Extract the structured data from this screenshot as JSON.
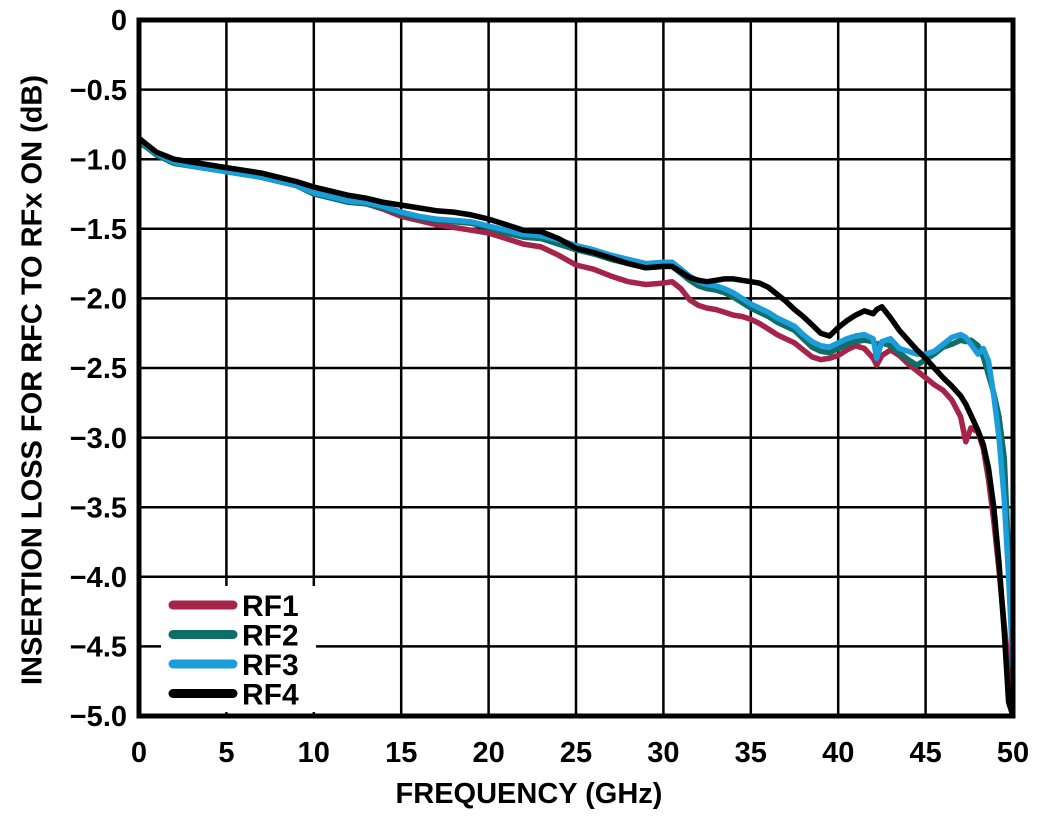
{
  "chart_data": {
    "type": "line",
    "title": "",
    "xlabel": "FREQUENCY (GHz)",
    "ylabel": "INSERTION LOSS FOR RFC TO RFx ON (dB)",
    "xlim": [
      0,
      50
    ],
    "ylim": [
      -5.0,
      0
    ],
    "grid": "on",
    "grid_spacing": {
      "x_ghz": 5,
      "y_db": 0.5
    },
    "legend_position": "lower-left",
    "x_ticks": [
      0,
      5,
      10,
      15,
      20,
      25,
      30,
      35,
      40,
      45,
      50
    ],
    "x_tick_labels": [
      "0",
      "5",
      "10",
      "15",
      "20",
      "25",
      "30",
      "35",
      "40",
      "45",
      "50"
    ],
    "y_ticks": [
      0,
      -0.5,
      -1.0,
      -1.5,
      -2.0,
      -2.5,
      -3.0,
      -3.5,
      -4.0,
      -4.5,
      -5.0
    ],
    "y_tick_labels": [
      "0",
      "−0.5",
      "−1.0",
      "−1.5",
      "−2.0",
      "−2.5",
      "−3.0",
      "−3.5",
      "−4.0",
      "−4.5",
      "−5.0"
    ],
    "x": [
      0,
      0.5,
      1,
      2,
      3,
      4,
      5,
      6,
      7,
      8,
      9,
      10,
      11,
      12,
      13,
      14,
      15,
      16,
      17,
      18,
      19,
      20,
      21,
      22,
      23,
      24,
      25,
      26,
      27,
      28,
      29,
      30,
      30.5,
      31,
      31.5,
      32,
      32.5,
      33,
      33.5,
      34,
      34.5,
      35,
      35.5,
      36,
      36.5,
      37,
      37.5,
      38,
      38.5,
      39,
      39.5,
      40,
      40.5,
      41,
      41.5,
      42,
      42.2,
      42.5,
      43,
      43.5,
      44,
      44.5,
      45,
      45.5,
      46,
      46.5,
      47,
      47.3,
      47.6,
      48,
      48.3,
      48.6,
      48.9,
      49.2,
      49.5,
      49.75,
      50
    ],
    "series": [
      {
        "name": "RF1",
        "color": "#A62349",
        "values": [
          -0.88,
          -0.92,
          -0.97,
          -1.02,
          -1.04,
          -1.06,
          -1.08,
          -1.1,
          -1.13,
          -1.16,
          -1.19,
          -1.23,
          -1.26,
          -1.3,
          -1.32,
          -1.36,
          -1.41,
          -1.44,
          -1.47,
          -1.49,
          -1.51,
          -1.53,
          -1.57,
          -1.61,
          -1.63,
          -1.69,
          -1.76,
          -1.79,
          -1.84,
          -1.88,
          -1.9,
          -1.89,
          -1.88,
          -1.93,
          -2.01,
          -2.05,
          -2.07,
          -2.08,
          -2.1,
          -2.12,
          -2.13,
          -2.15,
          -2.18,
          -2.22,
          -2.26,
          -2.29,
          -2.32,
          -2.37,
          -2.42,
          -2.44,
          -2.43,
          -2.41,
          -2.37,
          -2.34,
          -2.36,
          -2.43,
          -2.48,
          -2.41,
          -2.37,
          -2.41,
          -2.47,
          -2.52,
          -2.57,
          -2.62,
          -2.66,
          -2.73,
          -2.85,
          -3.03,
          -2.93,
          -2.96,
          -3.08,
          -3.3,
          -3.6,
          -3.95,
          -4.35,
          -4.65,
          -4.9
        ]
      },
      {
        "name": "RF2",
        "color": "#0F6F68",
        "values": [
          -0.87,
          -0.92,
          -0.97,
          -1.03,
          -1.05,
          -1.07,
          -1.09,
          -1.11,
          -1.13,
          -1.16,
          -1.19,
          -1.25,
          -1.28,
          -1.31,
          -1.32,
          -1.35,
          -1.39,
          -1.42,
          -1.44,
          -1.45,
          -1.46,
          -1.49,
          -1.53,
          -1.56,
          -1.57,
          -1.61,
          -1.65,
          -1.68,
          -1.72,
          -1.75,
          -1.78,
          -1.77,
          -1.77,
          -1.82,
          -1.87,
          -1.91,
          -1.93,
          -1.94,
          -1.96,
          -1.99,
          -2.03,
          -2.07,
          -2.1,
          -2.13,
          -2.17,
          -2.2,
          -2.23,
          -2.29,
          -2.35,
          -2.38,
          -2.39,
          -2.36,
          -2.33,
          -2.31,
          -2.3,
          -2.31,
          -2.33,
          -2.32,
          -2.34,
          -2.39,
          -2.44,
          -2.48,
          -2.44,
          -2.4,
          -2.35,
          -2.33,
          -2.3,
          -2.31,
          -2.3,
          -2.34,
          -2.42,
          -2.55,
          -2.68,
          -2.85,
          -3.15,
          -3.85,
          -4.6
        ]
      },
      {
        "name": "RF3",
        "color": "#1B9DDA",
        "values": [
          -0.86,
          -0.91,
          -0.96,
          -1.02,
          -1.05,
          -1.07,
          -1.09,
          -1.11,
          -1.13,
          -1.16,
          -1.19,
          -1.24,
          -1.27,
          -1.3,
          -1.31,
          -1.34,
          -1.38,
          -1.41,
          -1.43,
          -1.44,
          -1.45,
          -1.48,
          -1.51,
          -1.54,
          -1.55,
          -1.58,
          -1.62,
          -1.65,
          -1.69,
          -1.72,
          -1.75,
          -1.74,
          -1.74,
          -1.79,
          -1.84,
          -1.88,
          -1.9,
          -1.91,
          -1.93,
          -1.96,
          -2.0,
          -2.04,
          -2.07,
          -2.1,
          -2.14,
          -2.17,
          -2.2,
          -2.26,
          -2.31,
          -2.34,
          -2.35,
          -2.32,
          -2.29,
          -2.27,
          -2.26,
          -2.29,
          -2.43,
          -2.31,
          -2.29,
          -2.36,
          -2.38,
          -2.4,
          -2.4,
          -2.38,
          -2.33,
          -2.28,
          -2.26,
          -2.28,
          -2.33,
          -2.4,
          -2.36,
          -2.45,
          -2.7,
          -3.0,
          -3.45,
          -4.0,
          -4.65
        ]
      },
      {
        "name": "RF4",
        "color": "#000000",
        "values": [
          -0.85,
          -0.9,
          -0.95,
          -1.0,
          -1.02,
          -1.04,
          -1.06,
          -1.08,
          -1.1,
          -1.13,
          -1.16,
          -1.2,
          -1.23,
          -1.26,
          -1.28,
          -1.31,
          -1.33,
          -1.35,
          -1.37,
          -1.38,
          -1.4,
          -1.43,
          -1.47,
          -1.51,
          -1.52,
          -1.57,
          -1.64,
          -1.67,
          -1.71,
          -1.75,
          -1.78,
          -1.77,
          -1.77,
          -1.81,
          -1.85,
          -1.87,
          -1.88,
          -1.87,
          -1.86,
          -1.86,
          -1.87,
          -1.88,
          -1.89,
          -1.92,
          -1.97,
          -2.02,
          -2.08,
          -2.13,
          -2.19,
          -2.25,
          -2.27,
          -2.21,
          -2.16,
          -2.12,
          -2.09,
          -2.11,
          -2.08,
          -2.06,
          -2.14,
          -2.23,
          -2.3,
          -2.37,
          -2.43,
          -2.5,
          -2.57,
          -2.63,
          -2.7,
          -2.76,
          -2.84,
          -2.95,
          -3.05,
          -3.22,
          -3.5,
          -3.9,
          -4.4,
          -4.9,
          -5.0
        ]
      }
    ]
  }
}
